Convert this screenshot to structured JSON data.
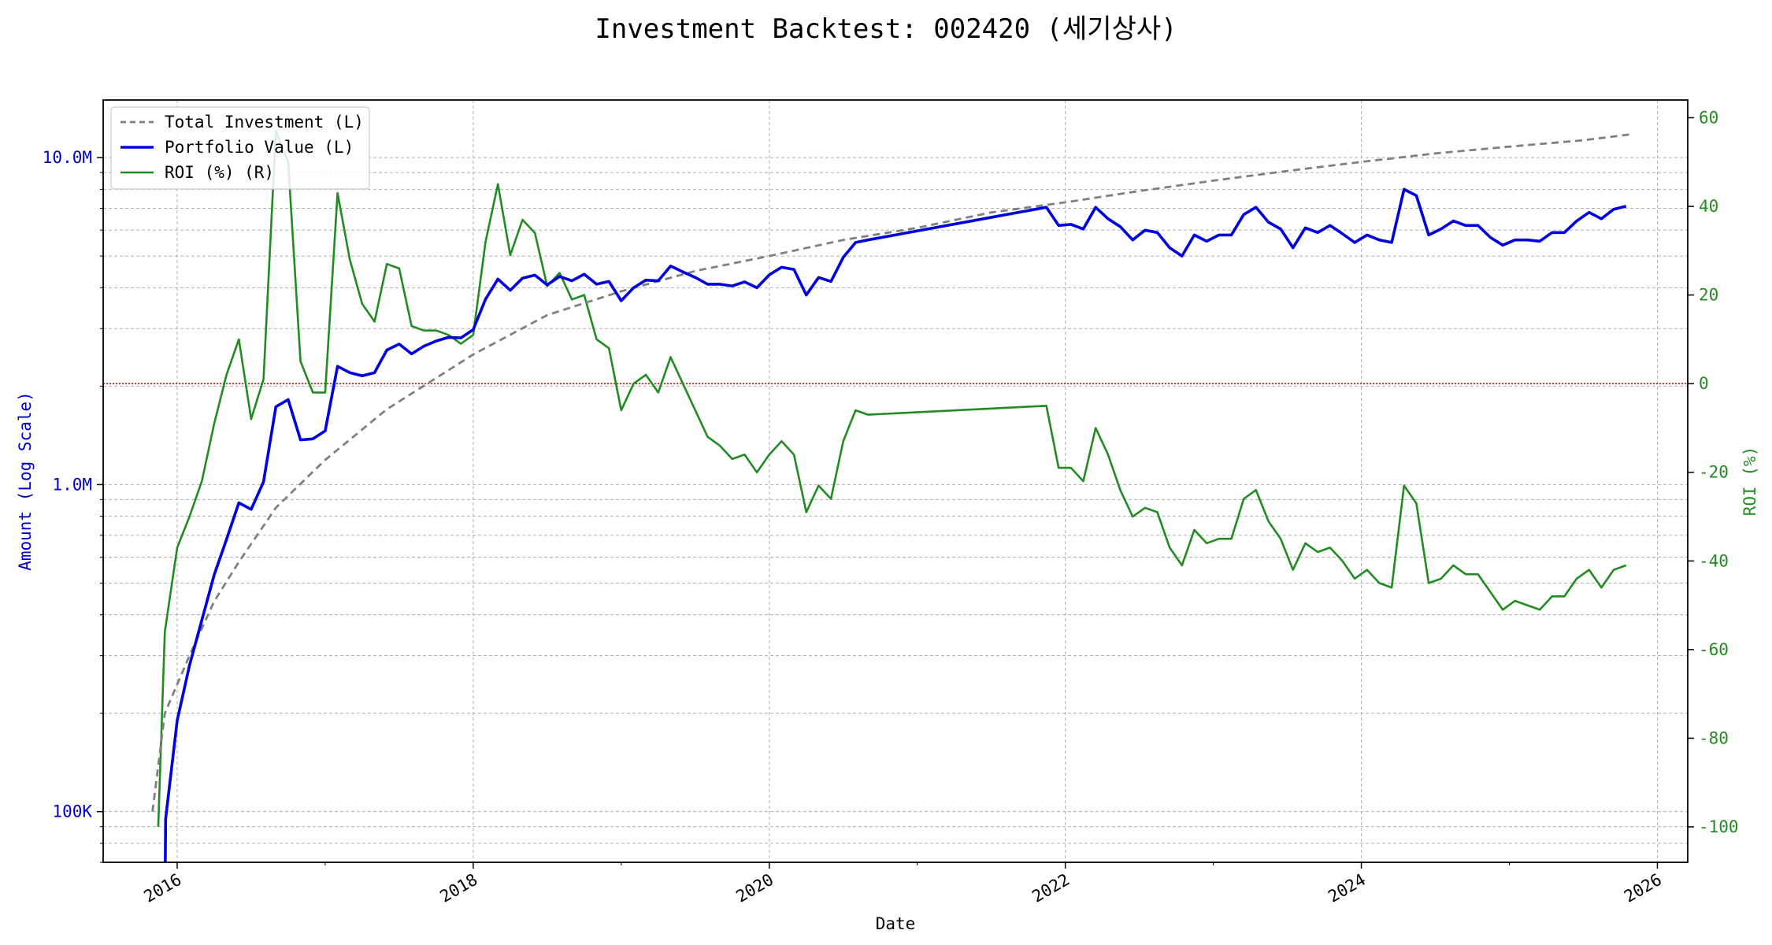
{
  "chart_data": {
    "type": "line",
    "title": "Investment Backtest: 002420 (세기상사)",
    "xlabel": "Date",
    "ylabel_left": "Amount (Log Scale)",
    "ylabel_right": "ROI (%)",
    "left_scale": "log",
    "left_ylim": [
      70000,
      15000000
    ],
    "right_ylim": [
      -108,
      64
    ],
    "xlim": [
      "2015-07-01",
      "2026-03-15"
    ],
    "grid": true,
    "legend_position": "top-left",
    "zero_roi_reference_line": {
      "value": 0,
      "color": "#ff0000",
      "style": "dotted"
    },
    "x_tick_labels": [
      "2016",
      "2018",
      "2020",
      "2022",
      "2024",
      "2026"
    ],
    "left_tick_labels": [
      "100K",
      "1.0M",
      "10.0M"
    ],
    "right_tick_labels": [
      "60",
      "40",
      "20",
      "0",
      "-20",
      "-40",
      "-60",
      "-80",
      "-100"
    ],
    "colors": {
      "total_investment": "#808080",
      "portfolio_value": "#0000e0",
      "roi": "#228b22",
      "left_axis": "#0000cc",
      "right_axis": "#228b22"
    },
    "series": [
      {
        "name": "Total Investment (L)",
        "axis": "left",
        "style": "dashed",
        "points": [
          [
            "2015-11-01",
            100000
          ],
          [
            "2015-12-01",
            200000
          ],
          [
            "2016-02-01",
            300000
          ],
          [
            "2016-04-01",
            440000
          ],
          [
            "2016-06-01",
            580000
          ],
          [
            "2016-09-01",
            850000
          ],
          [
            "2017-01-01",
            1190000
          ],
          [
            "2017-06-01",
            1700000
          ],
          [
            "2018-01-01",
            2500000
          ],
          [
            "2018-07-01",
            3300000
          ],
          [
            "2019-01-01",
            3900000
          ],
          [
            "2019-07-01",
            4500000
          ],
          [
            "2020-01-01",
            5000000
          ],
          [
            "2020-07-01",
            5600000
          ],
          [
            "2021-01-01",
            6100000
          ],
          [
            "2021-07-01",
            6800000
          ],
          [
            "2022-01-01",
            7300000
          ],
          [
            "2022-07-01",
            7900000
          ],
          [
            "2023-01-01",
            8500000
          ],
          [
            "2023-07-01",
            9100000
          ],
          [
            "2024-01-01",
            9700000
          ],
          [
            "2024-07-01",
            10300000
          ],
          [
            "2025-01-01",
            10800000
          ],
          [
            "2025-07-01",
            11300000
          ],
          [
            "2025-11-01",
            11800000
          ]
        ]
      },
      {
        "name": "Portfolio Value (L)",
        "axis": "left",
        "style": "solid",
        "points": [
          [
            "2015-12-01",
            45000
          ],
          [
            "2015-12-03",
            95000
          ],
          [
            "2016-01-01",
            190000
          ],
          [
            "2016-02-01",
            280000
          ],
          [
            "2016-04-01",
            530000
          ],
          [
            "2016-05-01",
            680000
          ],
          [
            "2016-06-01",
            880000
          ],
          [
            "2016-07-01",
            840000
          ],
          [
            "2016-08-01",
            1020000
          ],
          [
            "2016-09-01",
            1730000
          ],
          [
            "2016-10-01",
            1820000
          ],
          [
            "2016-11-01",
            1370000
          ],
          [
            "2016-12-01",
            1380000
          ],
          [
            "2017-01-01",
            1460000
          ],
          [
            "2017-02-01",
            2300000
          ],
          [
            "2017-03-01",
            2200000
          ],
          [
            "2017-04-01",
            2150000
          ],
          [
            "2017-05-01",
            2200000
          ],
          [
            "2017-06-01",
            2580000
          ],
          [
            "2017-07-01",
            2690000
          ],
          [
            "2017-08-01",
            2510000
          ],
          [
            "2017-09-01",
            2650000
          ],
          [
            "2017-10-01",
            2750000
          ],
          [
            "2017-11-01",
            2820000
          ],
          [
            "2017-12-01",
            2810000
          ],
          [
            "2018-01-01",
            2980000
          ],
          [
            "2018-02-01",
            3690000
          ],
          [
            "2018-03-01",
            4250000
          ],
          [
            "2018-04-01",
            3930000
          ],
          [
            "2018-05-01",
            4280000
          ],
          [
            "2018-06-01",
            4370000
          ],
          [
            "2018-07-01",
            4080000
          ],
          [
            "2018-08-01",
            4330000
          ],
          [
            "2018-09-01",
            4200000
          ],
          [
            "2018-10-01",
            4400000
          ],
          [
            "2018-11-01",
            4100000
          ],
          [
            "2018-12-01",
            4180000
          ],
          [
            "2019-01-01",
            3650000
          ],
          [
            "2019-02-01",
            4000000
          ],
          [
            "2019-03-01",
            4220000
          ],
          [
            "2019-04-01",
            4200000
          ],
          [
            "2019-05-01",
            4660000
          ],
          [
            "2019-06-01",
            4470000
          ],
          [
            "2019-07-01",
            4300000
          ],
          [
            "2019-08-01",
            4100000
          ],
          [
            "2019-09-01",
            4100000
          ],
          [
            "2019-10-01",
            4050000
          ],
          [
            "2019-11-01",
            4170000
          ],
          [
            "2019-12-01",
            4000000
          ],
          [
            "2020-01-01",
            4380000
          ],
          [
            "2020-02-01",
            4620000
          ],
          [
            "2020-03-01",
            4550000
          ],
          [
            "2020-04-01",
            3800000
          ],
          [
            "2020-05-01",
            4300000
          ],
          [
            "2020-06-01",
            4180000
          ],
          [
            "2020-07-01",
            4950000
          ],
          [
            "2020-08-01",
            5500000
          ],
          [
            "2020-09-01",
            5600000
          ],
          [
            "2021-11-15",
            7050000
          ],
          [
            "2021-12-15",
            6200000
          ],
          [
            "2022-01-15",
            6250000
          ],
          [
            "2022-02-15",
            6050000
          ],
          [
            "2022-03-15",
            7050000
          ],
          [
            "2022-04-15",
            6500000
          ],
          [
            "2022-05-15",
            6150000
          ],
          [
            "2022-06-15",
            5600000
          ],
          [
            "2022-07-15",
            6000000
          ],
          [
            "2022-08-15",
            5900000
          ],
          [
            "2022-09-15",
            5300000
          ],
          [
            "2022-10-15",
            5000000
          ],
          [
            "2022-11-15",
            5800000
          ],
          [
            "2022-12-15",
            5550000
          ],
          [
            "2023-01-15",
            5800000
          ],
          [
            "2023-02-15",
            5800000
          ],
          [
            "2023-03-15",
            6700000
          ],
          [
            "2023-04-15",
            7050000
          ],
          [
            "2023-05-15",
            6350000
          ],
          [
            "2023-06-15",
            6050000
          ],
          [
            "2023-07-15",
            5300000
          ],
          [
            "2023-08-15",
            6100000
          ],
          [
            "2023-09-15",
            5900000
          ],
          [
            "2023-10-15",
            6200000
          ],
          [
            "2023-11-15",
            5850000
          ],
          [
            "2023-12-15",
            5500000
          ],
          [
            "2024-01-15",
            5800000
          ],
          [
            "2024-02-15",
            5600000
          ],
          [
            "2024-03-15",
            5500000
          ],
          [
            "2024-04-15",
            8000000
          ],
          [
            "2024-05-15",
            7650000
          ],
          [
            "2024-06-15",
            5800000
          ],
          [
            "2024-07-15",
            6050000
          ],
          [
            "2024-08-15",
            6400000
          ],
          [
            "2024-09-15",
            6200000
          ],
          [
            "2024-10-15",
            6200000
          ],
          [
            "2024-11-15",
            5700000
          ],
          [
            "2024-12-15",
            5400000
          ],
          [
            "2025-01-15",
            5600000
          ],
          [
            "2025-02-15",
            5600000
          ],
          [
            "2025-03-15",
            5550000
          ],
          [
            "2025-04-15",
            5900000
          ],
          [
            "2025-05-15",
            5900000
          ],
          [
            "2025-06-15",
            6400000
          ],
          [
            "2025-07-15",
            6800000
          ],
          [
            "2025-08-15",
            6500000
          ],
          [
            "2025-09-15",
            6950000
          ],
          [
            "2025-10-15",
            7100000
          ]
        ]
      },
      {
        "name": "ROI (%) (R)",
        "axis": "right",
        "style": "solid",
        "points": [
          [
            "2015-11-15",
            -100
          ],
          [
            "2015-12-01",
            -56
          ],
          [
            "2016-01-01",
            -37
          ],
          [
            "2016-02-01",
            -30
          ],
          [
            "2016-03-01",
            -22
          ],
          [
            "2016-04-01",
            -9
          ],
          [
            "2016-05-01",
            2
          ],
          [
            "2016-06-01",
            10
          ],
          [
            "2016-07-01",
            -8
          ],
          [
            "2016-08-01",
            1
          ],
          [
            "2016-09-01",
            57
          ],
          [
            "2016-10-01",
            50
          ],
          [
            "2016-11-01",
            5
          ],
          [
            "2016-12-01",
            -2
          ],
          [
            "2017-01-01",
            -2
          ],
          [
            "2017-02-01",
            43
          ],
          [
            "2017-03-01",
            28
          ],
          [
            "2017-04-01",
            18
          ],
          [
            "2017-05-01",
            14
          ],
          [
            "2017-06-01",
            27
          ],
          [
            "2017-07-01",
            26
          ],
          [
            "2017-08-01",
            13
          ],
          [
            "2017-09-01",
            12
          ],
          [
            "2017-10-01",
            12
          ],
          [
            "2017-11-01",
            11
          ],
          [
            "2017-12-01",
            9
          ],
          [
            "2018-01-01",
            11
          ],
          [
            "2018-02-01",
            32
          ],
          [
            "2018-03-01",
            45
          ],
          [
            "2018-04-01",
            29
          ],
          [
            "2018-05-01",
            37
          ],
          [
            "2018-06-01",
            34
          ],
          [
            "2018-07-01",
            22
          ],
          [
            "2018-08-01",
            25
          ],
          [
            "2018-09-01",
            19
          ],
          [
            "2018-10-01",
            20
          ],
          [
            "2018-11-01",
            10
          ],
          [
            "2018-12-01",
            8
          ],
          [
            "2019-01-01",
            -6
          ],
          [
            "2019-02-01",
            0
          ],
          [
            "2019-03-01",
            2
          ],
          [
            "2019-04-01",
            -2
          ],
          [
            "2019-05-01",
            6
          ],
          [
            "2019-06-01",
            0
          ],
          [
            "2019-07-01",
            -6
          ],
          [
            "2019-08-01",
            -12
          ],
          [
            "2019-09-01",
            -14
          ],
          [
            "2019-10-01",
            -17
          ],
          [
            "2019-11-01",
            -16
          ],
          [
            "2019-12-01",
            -20
          ],
          [
            "2020-01-01",
            -16
          ],
          [
            "2020-02-01",
            -13
          ],
          [
            "2020-03-01",
            -16
          ],
          [
            "2020-04-01",
            -29
          ],
          [
            "2020-05-01",
            -23
          ],
          [
            "2020-06-01",
            -26
          ],
          [
            "2020-07-01",
            -13
          ],
          [
            "2020-08-01",
            -6
          ],
          [
            "2020-09-01",
            -7
          ],
          [
            "2021-11-15",
            -5
          ],
          [
            "2021-12-15",
            -19
          ],
          [
            "2022-01-15",
            -19
          ],
          [
            "2022-02-15",
            -22
          ],
          [
            "2022-03-15",
            -10
          ],
          [
            "2022-04-15",
            -16
          ],
          [
            "2022-05-15",
            -24
          ],
          [
            "2022-06-15",
            -30
          ],
          [
            "2022-07-15",
            -28
          ],
          [
            "2022-08-15",
            -29
          ],
          [
            "2022-09-15",
            -37
          ],
          [
            "2022-10-15",
            -41
          ],
          [
            "2022-11-15",
            -33
          ],
          [
            "2022-12-15",
            -36
          ],
          [
            "2023-01-15",
            -35
          ],
          [
            "2023-02-15",
            -35
          ],
          [
            "2023-03-15",
            -26
          ],
          [
            "2023-04-15",
            -24
          ],
          [
            "2023-05-15",
            -31
          ],
          [
            "2023-06-15",
            -35
          ],
          [
            "2023-07-15",
            -42
          ],
          [
            "2023-08-15",
            -36
          ],
          [
            "2023-09-15",
            -38
          ],
          [
            "2023-10-15",
            -37
          ],
          [
            "2023-11-15",
            -40
          ],
          [
            "2023-12-15",
            -44
          ],
          [
            "2024-01-15",
            -42
          ],
          [
            "2024-02-15",
            -45
          ],
          [
            "2024-03-15",
            -46
          ],
          [
            "2024-04-15",
            -23
          ],
          [
            "2024-05-15",
            -27
          ],
          [
            "2024-06-15",
            -45
          ],
          [
            "2024-07-15",
            -44
          ],
          [
            "2024-08-15",
            -41
          ],
          [
            "2024-09-15",
            -43
          ],
          [
            "2024-10-15",
            -43
          ],
          [
            "2024-11-15",
            -47
          ],
          [
            "2024-12-15",
            -51
          ],
          [
            "2025-01-15",
            -49
          ],
          [
            "2025-02-15",
            -50
          ],
          [
            "2025-03-15",
            -51
          ],
          [
            "2025-04-15",
            -48
          ],
          [
            "2025-05-15",
            -48
          ],
          [
            "2025-06-15",
            -44
          ],
          [
            "2025-07-15",
            -42
          ],
          [
            "2025-08-15",
            -46
          ],
          [
            "2025-09-15",
            -42
          ],
          [
            "2025-10-15",
            -41
          ]
        ]
      }
    ]
  }
}
